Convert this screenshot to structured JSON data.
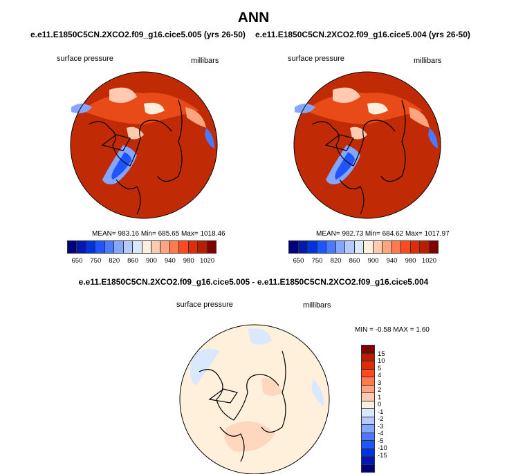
{
  "title": "ANN",
  "chart_data": [
    {
      "type": "heatmap",
      "title": "e.e11.E1850C5CN.2XCO2.f09_g16.cice5.005 (yrs 26-50)",
      "left_label": "surface pressure",
      "right_label": "millibars",
      "stats": "MEAN= 983.16  Min= 685.65  Max= 1018.46",
      "mean": 983.16,
      "min": 685.65,
      "max": 1018.46,
      "projection": "north polar stereographic"
    },
    {
      "type": "heatmap",
      "title": "e.e11.E1850C5CN.2XCO2.f09_g16.cice5.004 (yrs 26-50)",
      "left_label": "surface pressure",
      "right_label": "millibars",
      "stats": "MEAN= 982.73  Min= 684.62  Max= 1017.97",
      "mean": 982.73,
      "min": 684.62,
      "max": 1017.97,
      "projection": "north polar stereographic"
    },
    {
      "type": "heatmap",
      "title": "e.e11.E1850C5CN.2XCO2.f09_g16.cice5.005 - e.e11.E1850C5CN.2XCO2.f09_g16.cice5.004",
      "left_label": "surface pressure",
      "right_label": "millibars",
      "stats": "MIN =  -0.58 MAX =   1.60",
      "min": -0.58,
      "max": 1.6,
      "projection": "north polar stereographic"
    }
  ],
  "colorbar_abs": {
    "tick_labels": [
      "650",
      "750",
      "820",
      "860",
      "900",
      "940",
      "980",
      "1020"
    ],
    "levels": [
      650,
      700,
      750,
      800,
      820,
      840,
      860,
      880,
      900,
      920,
      940,
      960,
      980,
      1000,
      1020
    ],
    "colors": [
      "#00007f",
      "#0019b0",
      "#0033e0",
      "#1f55ff",
      "#4a78ff",
      "#85a6ff",
      "#b3c9ff",
      "#d9e8ff",
      "#fff0dc",
      "#ffcbb0",
      "#ffa47e",
      "#ff7a4c",
      "#ff4a20",
      "#e02c00",
      "#b81e00",
      "#800000"
    ]
  },
  "colorbar_diff": {
    "tick_labels": [
      "-15",
      "-10",
      "-5",
      "-4",
      "-3",
      "-2",
      "-1",
      "0",
      "1",
      "2",
      "3",
      "4",
      "5",
      "10",
      "15"
    ],
    "colors": [
      "#00007f",
      "#0019b0",
      "#0033e0",
      "#1f55ff",
      "#4a78ff",
      "#85a6ff",
      "#b3c9ff",
      "#d9e8ff",
      "#fff0dc",
      "#ffcbb0",
      "#ffa47e",
      "#ff7a4c",
      "#ff4a20",
      "#e02c00",
      "#b81e00",
      "#800000"
    ]
  }
}
